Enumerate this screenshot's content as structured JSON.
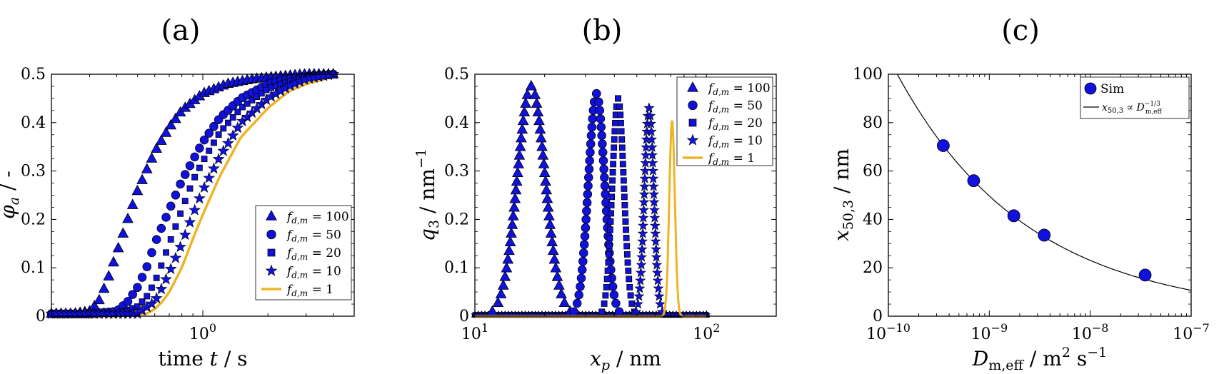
{
  "colors": {
    "sim": "#1111dd",
    "sim_edge": "#000000",
    "ref": "#f0b323",
    "fit": "#000000"
  },
  "chart_data": [
    {
      "panel": "(a)",
      "type": "scatter",
      "x_scale": "log",
      "xlim": [
        0.2,
        5.0
      ],
      "ylim": [
        0,
        0.5
      ],
      "xlabel": "time t / s",
      "ylabel": "φa / -",
      "xticks": [
        {
          "value": 1,
          "label": "10^0"
        }
      ],
      "yticks": [
        {
          "value": 0,
          "label": "0"
        },
        {
          "value": 0.1,
          "label": "0.1"
        },
        {
          "value": 0.2,
          "label": "0.2"
        },
        {
          "value": 0.3,
          "label": "0.3"
        },
        {
          "value": 0.4,
          "label": "0.4"
        },
        {
          "value": 0.5,
          "label": "0.5"
        }
      ],
      "legend_position": "lower-right",
      "series": [
        {
          "name": "f_{d,m} = 100",
          "marker": "triangle",
          "x": [
            0.2,
            0.25,
            0.3,
            0.33,
            0.36,
            0.4,
            0.45,
            0.5,
            0.6,
            0.7,
            0.8,
            1.0,
            1.3,
            1.7,
            2.2,
            3.0,
            4.0
          ],
          "y": [
            0.005,
            0.005,
            0.01,
            0.03,
            0.07,
            0.13,
            0.2,
            0.26,
            0.34,
            0.39,
            0.425,
            0.46,
            0.48,
            0.49,
            0.495,
            0.5,
            0.5
          ]
        },
        {
          "name": "f_{d,m} = 50",
          "marker": "circle",
          "x": [
            0.2,
            0.3,
            0.4,
            0.45,
            0.5,
            0.55,
            0.6,
            0.7,
            0.8,
            1.0,
            1.2,
            1.5,
            2.0,
            2.5,
            3.0,
            4.0
          ],
          "y": [
            0.005,
            0.005,
            0.01,
            0.03,
            0.06,
            0.1,
            0.15,
            0.22,
            0.28,
            0.36,
            0.41,
            0.45,
            0.48,
            0.49,
            0.495,
            0.5
          ]
        },
        {
          "name": "f_{d,m} = 20",
          "marker": "square",
          "x": [
            0.2,
            0.3,
            0.4,
            0.5,
            0.55,
            0.6,
            0.65,
            0.7,
            0.8,
            0.9,
            1.0,
            1.2,
            1.5,
            2.0,
            2.5,
            3.0,
            4.0
          ],
          "y": [
            0.005,
            0.005,
            0.005,
            0.02,
            0.04,
            0.07,
            0.11,
            0.15,
            0.22,
            0.28,
            0.32,
            0.38,
            0.43,
            0.47,
            0.485,
            0.495,
            0.5
          ]
        },
        {
          "name": "f_{d,m} = 10",
          "marker": "star",
          "x": [
            0.2,
            0.3,
            0.4,
            0.5,
            0.6,
            0.65,
            0.7,
            0.8,
            0.9,
            1.0,
            1.2,
            1.5,
            2.0,
            2.5,
            3.0,
            4.0
          ],
          "y": [
            0.005,
            0.005,
            0.005,
            0.005,
            0.03,
            0.06,
            0.09,
            0.15,
            0.21,
            0.26,
            0.33,
            0.4,
            0.45,
            0.475,
            0.49,
            0.5
          ]
        },
        {
          "name": "f_{d,m} = 1",
          "marker": "line",
          "x": [
            0.2,
            0.4,
            0.55,
            0.6,
            0.65,
            0.7,
            0.8,
            0.9,
            1.0,
            1.2,
            1.5,
            2.0,
            2.5,
            3.0,
            4.0
          ],
          "y": [
            0,
            0,
            0.005,
            0.015,
            0.03,
            0.05,
            0.1,
            0.16,
            0.21,
            0.29,
            0.37,
            0.43,
            0.465,
            0.48,
            0.495
          ]
        }
      ]
    },
    {
      "panel": "(b)",
      "type": "scatter",
      "x_scale": "log",
      "xlim": [
        10,
        200
      ],
      "ylim": [
        0,
        0.5
      ],
      "xlabel": "x_p / nm",
      "ylabel": "q3 / nm^-1",
      "xticks": [
        {
          "value": 10,
          "label": "10^1"
        },
        {
          "value": 100,
          "label": "10^2"
        }
      ],
      "yticks": [
        {
          "value": 0,
          "label": "0"
        },
        {
          "value": 0.1,
          "label": "0.1"
        },
        {
          "value": 0.2,
          "label": "0.2"
        },
        {
          "value": 0.3,
          "label": "0.3"
        },
        {
          "value": 0.4,
          "label": "0.4"
        },
        {
          "value": 0.5,
          "label": "0.5"
        }
      ],
      "legend_position": "top-right",
      "series": [
        {
          "name": "f_{d,m} = 100",
          "marker": "triangle",
          "peak": {
            "center": 17.5,
            "height": 0.475,
            "rel_width": 0.06
          }
        },
        {
          "name": "f_{d,m} = 50",
          "marker": "circle",
          "peak": {
            "center": 33.5,
            "height": 0.46,
            "rel_width": 0.035
          }
        },
        {
          "name": "f_{d,m} = 20",
          "marker": "square",
          "peak": {
            "center": 41.5,
            "height": 0.45,
            "rel_width": 0.025
          }
        },
        {
          "name": "f_{d,m} = 10",
          "marker": "star",
          "peak": {
            "center": 56.5,
            "height": 0.43,
            "rel_width": 0.02
          }
        },
        {
          "name": "f_{d,m} = 1",
          "marker": "line",
          "peak": {
            "center": 71,
            "height": 0.405,
            "rel_width": 0.012
          }
        }
      ],
      "baseline_range": [
        10,
        100
      ]
    },
    {
      "panel": "(c)",
      "type": "scatter",
      "x_scale": "log",
      "xlim": [
        1e-10,
        1e-07
      ],
      "ylim": [
        0,
        100
      ],
      "xlabel": "D_m,eff / m^2 s^-1",
      "ylabel": "x50,3 / nm",
      "xticks": [
        {
          "value": 1e-10,
          "label": "10^-10"
        },
        {
          "value": 1e-09,
          "label": "10^-9"
        },
        {
          "value": 1e-08,
          "label": "10^-8"
        },
        {
          "value": 1e-07,
          "label": "10^-7"
        }
      ],
      "yticks": [
        {
          "value": 0,
          "label": "0"
        },
        {
          "value": 20,
          "label": "20"
        },
        {
          "value": 40,
          "label": "40"
        },
        {
          "value": 60,
          "label": "60"
        },
        {
          "value": 80,
          "label": "80"
        },
        {
          "value": 100,
          "label": "100"
        }
      ],
      "legend_position": "top-right",
      "series": [
        {
          "name": "Sim",
          "marker": "circle",
          "x": [
            3.5e-10,
            7e-10,
            1.75e-09,
            3.5e-09,
            3.5e-08
          ],
          "y": [
            70.5,
            56,
            41.5,
            33.5,
            17
          ]
        },
        {
          "name": "x_{50,3} ∝ D_{m,eff}^{-1/3}",
          "marker": "line",
          "fit": {
            "type": "power",
            "exponent": -0.3333,
            "ref_x": 3.5e-10,
            "ref_y": 70.5
          },
          "x_range": [
            1e-10,
            1e-07
          ]
        }
      ]
    }
  ]
}
